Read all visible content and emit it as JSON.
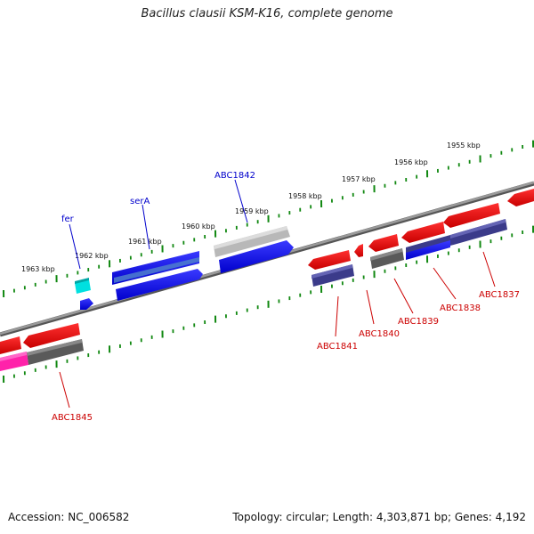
{
  "title": "Bacillus clausii KSM-K16, complete genome",
  "accession": "Accession: NC_006582",
  "topology": "Topology: circular; Length: 4,303,871 bp; Genes: 4,192",
  "colors": {
    "forward_gene": "#0000ff",
    "reverse_gene": "#ff0000",
    "tick": "#118811",
    "backbone": "#808080",
    "label_forward": "#0000cc",
    "label_reverse": "#cc0000"
  },
  "scale_labels": [
    "1955 kbp",
    "1956 kbp",
    "1957 kbp",
    "1958 kbp",
    "1959 kbp",
    "1960 kbp",
    "1961 kbp",
    "1962 kbp",
    "1963 kbp"
  ],
  "gene_labels_forward": [
    "fer",
    "serA",
    "ABC1842"
  ],
  "gene_labels_reverse": [
    "ABC1837",
    "ABC1838",
    "ABC1839",
    "ABC1840",
    "ABC1841",
    "ABC1845"
  ]
}
